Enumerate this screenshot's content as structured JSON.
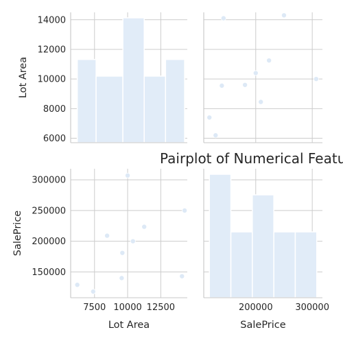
{
  "chart_data": {
    "type": "scatter",
    "title": "Pairplot of Numerical Features",
    "variables": [
      "Lot Area",
      "SalePrice"
    ],
    "observations": [
      {
        "lot_area": 6200,
        "sale_price": 129000
      },
      {
        "lot_area": 7400,
        "sale_price": 118000
      },
      {
        "lot_area": 8450,
        "sale_price": 209000
      },
      {
        "lot_area": 9550,
        "sale_price": 140000
      },
      {
        "lot_area": 9600,
        "sale_price": 181000
      },
      {
        "lot_area": 10000,
        "sale_price": 307000
      },
      {
        "lot_area": 10400,
        "sale_price": 200000
      },
      {
        "lot_area": 11250,
        "sale_price": 223500
      },
      {
        "lot_area": 14100,
        "sale_price": 143000
      },
      {
        "lot_area": 14300,
        "sale_price": 250000
      }
    ],
    "lot_area_hist": {
      "bins": [
        [
          6200,
          7620
        ],
        [
          7620,
          9640
        ],
        [
          9640,
          11250
        ],
        [
          11250,
          12860
        ],
        [
          12860,
          14300
        ]
      ],
      "counts": [
        2,
        1.6,
        3,
        1.6,
        2
      ]
    },
    "sale_price_hist": {
      "bins": [
        [
          118000,
          156000
        ],
        [
          156000,
          194000
        ],
        [
          194000,
          232000
        ],
        [
          232000,
          270000
        ],
        [
          270000,
          308000
        ]
      ],
      "counts": [
        3,
        1.6,
        2.5,
        1.6,
        1.6
      ]
    },
    "axes": {
      "lot_area": {
        "range": [
          5700,
          14500
        ],
        "ticks": [
          6000,
          8000,
          10000,
          12000,
          14000
        ],
        "tick_labels": [
          "6000",
          "8000",
          "10000",
          "12000",
          "14000"
        ],
        "xticks": [
          7500,
          10000,
          12500
        ],
        "xtick_labels": [
          "7500",
          "10000",
          "12500"
        ]
      },
      "sale_price": {
        "range": [
          108000,
          318000
        ],
        "ticks": [
          150000,
          200000,
          250000,
          300000
        ],
        "tick_labels": [
          "150000",
          "200000",
          "250000",
          "300000"
        ],
        "xticks": [
          200000,
          300000
        ],
        "xtick_labels": [
          "200000",
          "300000"
        ]
      }
    },
    "labels": {
      "lot_area": "Lot Area",
      "sale_price": "SalePrice"
    },
    "grid": true,
    "colors": {
      "marker": "#dde9f6",
      "bar": "#e1ecf8",
      "grid": "#cccccc",
      "text": "#262626"
    }
  }
}
